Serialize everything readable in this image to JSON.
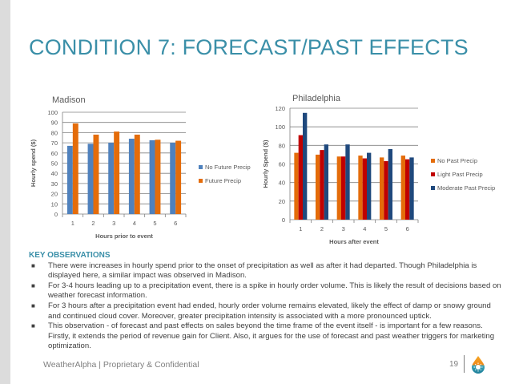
{
  "slide": {
    "title": "CONDITION 7: FORECAST/PAST EFFECTS",
    "footer": "WeatherAlpha | Proprietary & Confidential",
    "page_number": "19",
    "logo_icon": "weatheralpha-drop-sun-logo"
  },
  "observations": {
    "heading": "KEY OBSERVATIONS",
    "items": [
      "There were increases in hourly spend prior to the onset of precipitation as well as after it had departed.  Though Philadelphia is displayed here, a similar impact was observed in Madison.",
      "For 3-4 hours leading up to a precipitation event, there is a spike in hourly order volume.  This is likely the result of decisions based on weather forecast information.",
      "For 3 hours after a precipitation event had ended, hourly order volume remains elevated, likely the effect of damp or snowy ground and continued cloud cover.  Moreover, greater precipitation intensity is associated with a more pronounced uptick.",
      "This observation - of forecast and past effects on sales beyond the time frame of the event itself - is important for a few reasons.  Firstly, it extends the period of revenue gain for Client.  Also, it argues for the use of forecast and past weather triggers for marketing optimization."
    ]
  },
  "chart_data": [
    {
      "type": "bar",
      "title": "Madison",
      "xlabel": "Hours prior to event",
      "ylabel": "Hourly spend ($)",
      "categories": [
        "1",
        "2",
        "3",
        "4",
        "5",
        "6"
      ],
      "ylim": [
        0,
        100
      ],
      "yticks": [
        0,
        10,
        20,
        30,
        40,
        50,
        60,
        70,
        80,
        90,
        100
      ],
      "grid": true,
      "legend": "right",
      "series": [
        {
          "name": "No Future Precip",
          "color": "#4f81bd",
          "values": [
            67,
            69,
            70,
            74,
            72.5,
            70
          ]
        },
        {
          "name": "Future Precip",
          "color": "#e46c0a",
          "values": [
            89,
            78,
            81,
            78,
            73,
            72
          ]
        }
      ]
    },
    {
      "type": "bar",
      "title": "Philadelphia",
      "xlabel": "Hours after event",
      "ylabel": "Hourly Spend ($)",
      "categories": [
        "1",
        "2",
        "3",
        "4",
        "5",
        "6"
      ],
      "ylim": [
        0,
        120
      ],
      "yticks": [
        0,
        20,
        40,
        60,
        80,
        100,
        120
      ],
      "grid": true,
      "legend": "right",
      "series": [
        {
          "name": "No Past Precip",
          "color": "#e46c0a",
          "values": [
            72,
            70,
            68,
            69,
            67,
            69
          ]
        },
        {
          "name": "Light Past Precip",
          "color": "#c00000",
          "values": [
            91,
            75,
            68,
            66,
            63,
            65
          ]
        },
        {
          "name": "Moderate Past Precip",
          "color": "#1f497d",
          "values": [
            115,
            81,
            81,
            72,
            76,
            67
          ]
        }
      ]
    }
  ]
}
